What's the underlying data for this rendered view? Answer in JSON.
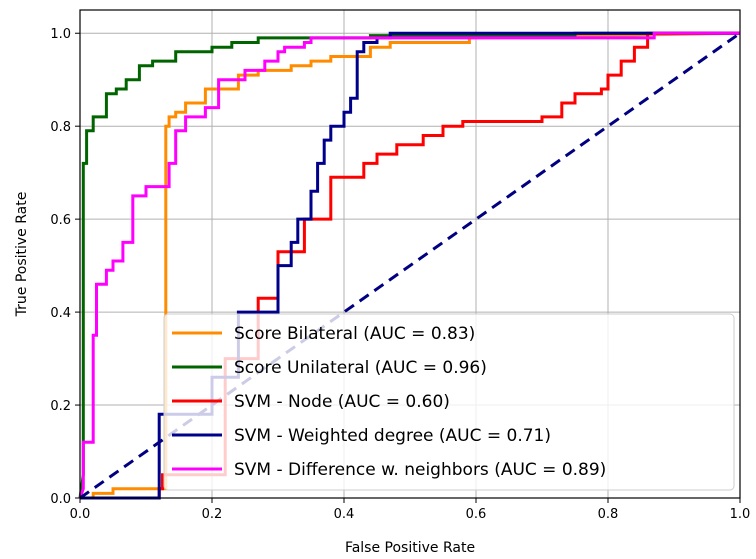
{
  "chart_data": {
    "type": "line",
    "title": "",
    "xlabel": "False Positive Rate",
    "ylabel": "True Positive Rate",
    "xlim": [
      0,
      1
    ],
    "ylim": [
      0,
      1.05
    ],
    "xticks": [
      "0.0",
      "0.2",
      "0.4",
      "0.6",
      "0.8",
      "1.0"
    ],
    "yticks": [
      "0.0",
      "0.2",
      "0.4",
      "0.6",
      "0.8",
      "1.0"
    ],
    "grid": true,
    "legend_position": "lower-right",
    "series": [
      {
        "name": "Score Bilateral (AUC = 0.83)",
        "color": "#ff8c00",
        "x": [
          0,
          0.02,
          0.02,
          0.05,
          0.05,
          0.13,
          0.13,
          0.135,
          0.135,
          0.145,
          0.145,
          0.16,
          0.16,
          0.19,
          0.19,
          0.24,
          0.24,
          0.27,
          0.27,
          0.32,
          0.32,
          0.35,
          0.35,
          0.38,
          0.38,
          0.44,
          0.44,
          0.47,
          0.47,
          0.59,
          0.59,
          1.0
        ],
        "y": [
          0,
          0,
          0.01,
          0.01,
          0.02,
          0.02,
          0.8,
          0.8,
          0.82,
          0.82,
          0.83,
          0.83,
          0.85,
          0.85,
          0.88,
          0.88,
          0.91,
          0.91,
          0.92,
          0.92,
          0.93,
          0.93,
          0.94,
          0.94,
          0.95,
          0.95,
          0.97,
          0.97,
          0.98,
          0.98,
          0.99,
          1.0
        ]
      },
      {
        "name": "Score Unilateral (AUC = 0.96)",
        "color": "#006400",
        "x": [
          0,
          0.005,
          0.005,
          0.01,
          0.01,
          0.02,
          0.02,
          0.04,
          0.04,
          0.055,
          0.055,
          0.07,
          0.07,
          0.09,
          0.09,
          0.11,
          0.11,
          0.145,
          0.145,
          0.2,
          0.2,
          0.23,
          0.23,
          0.27,
          0.27,
          0.44,
          0.44,
          0.75,
          0.75,
          1.0
        ],
        "y": [
          0,
          0.05,
          0.72,
          0.72,
          0.79,
          0.79,
          0.82,
          0.82,
          0.87,
          0.87,
          0.88,
          0.88,
          0.9,
          0.9,
          0.93,
          0.93,
          0.94,
          0.94,
          0.96,
          0.96,
          0.97,
          0.97,
          0.98,
          0.98,
          0.99,
          0.99,
          0.995,
          0.995,
          1.0,
          1.0
        ]
      },
      {
        "name": "SVM - Node (AUC = 0.60)",
        "color": "#ff0000",
        "x": [
          0,
          0.12,
          0.12,
          0.125,
          0.125,
          0.22,
          0.22,
          0.27,
          0.27,
          0.3,
          0.3,
          0.34,
          0.34,
          0.38,
          0.38,
          0.43,
          0.43,
          0.45,
          0.45,
          0.48,
          0.48,
          0.52,
          0.52,
          0.55,
          0.55,
          0.58,
          0.58,
          0.7,
          0.7,
          0.73,
          0.73,
          0.75,
          0.75,
          0.79,
          0.79,
          0.8,
          0.8,
          0.82,
          0.82,
          0.84,
          0.84,
          0.86,
          0.86,
          1.0
        ],
        "y": [
          0,
          0,
          0.02,
          0.02,
          0.05,
          0.05,
          0.3,
          0.3,
          0.43,
          0.43,
          0.53,
          0.53,
          0.6,
          0.6,
          0.69,
          0.69,
          0.72,
          0.72,
          0.74,
          0.74,
          0.76,
          0.76,
          0.78,
          0.78,
          0.8,
          0.8,
          0.81,
          0.81,
          0.82,
          0.82,
          0.85,
          0.85,
          0.87,
          0.87,
          0.88,
          0.88,
          0.91,
          0.91,
          0.94,
          0.94,
          0.97,
          0.97,
          1.0,
          1.0
        ]
      },
      {
        "name": "SVM - Weighted degree (AUC = 0.71)",
        "color": "#00008b",
        "x": [
          0,
          0.12,
          0.12,
          0.2,
          0.2,
          0.24,
          0.24,
          0.3,
          0.3,
          0.32,
          0.32,
          0.33,
          0.33,
          0.35,
          0.35,
          0.36,
          0.36,
          0.37,
          0.37,
          0.38,
          0.38,
          0.4,
          0.4,
          0.41,
          0.41,
          0.42,
          0.42,
          0.43,
          0.43,
          0.45,
          0.45,
          0.47,
          0.47,
          0.6,
          0.6,
          1.0
        ],
        "y": [
          0,
          0,
          0.18,
          0.18,
          0.26,
          0.26,
          0.4,
          0.4,
          0.5,
          0.5,
          0.55,
          0.55,
          0.6,
          0.6,
          0.66,
          0.66,
          0.72,
          0.72,
          0.77,
          0.77,
          0.8,
          0.8,
          0.83,
          0.83,
          0.86,
          0.86,
          0.96,
          0.96,
          0.98,
          0.98,
          0.99,
          0.99,
          1.0,
          1.0,
          1.0,
          1.0
        ]
      },
      {
        "name": "SVM - Difference w. neighbors (AUC = 0.89)",
        "color": "#ff00ff",
        "x": [
          0,
          0.005,
          0.005,
          0.02,
          0.02,
          0.025,
          0.025,
          0.04,
          0.04,
          0.05,
          0.05,
          0.065,
          0.065,
          0.08,
          0.08,
          0.1,
          0.1,
          0.135,
          0.135,
          0.145,
          0.145,
          0.16,
          0.16,
          0.19,
          0.19,
          0.21,
          0.21,
          0.25,
          0.25,
          0.28,
          0.28,
          0.3,
          0.3,
          0.31,
          0.31,
          0.34,
          0.34,
          0.35,
          0.35,
          0.44,
          0.44,
          0.46,
          0.46,
          0.87,
          0.87,
          1.0
        ],
        "y": [
          0,
          0.02,
          0.12,
          0.12,
          0.35,
          0.35,
          0.46,
          0.46,
          0.49,
          0.49,
          0.51,
          0.51,
          0.55,
          0.55,
          0.65,
          0.65,
          0.67,
          0.67,
          0.72,
          0.72,
          0.79,
          0.79,
          0.82,
          0.82,
          0.84,
          0.84,
          0.9,
          0.9,
          0.92,
          0.92,
          0.94,
          0.94,
          0.96,
          0.96,
          0.97,
          0.97,
          0.98,
          0.98,
          0.99,
          0.99,
          0.99,
          0.99,
          0.99,
          0.99,
          1.0,
          1.0
        ]
      }
    ],
    "reference_line": {
      "x": [
        0,
        1
      ],
      "y": [
        0,
        1
      ],
      "color": "#000080",
      "style": "dashed"
    }
  }
}
